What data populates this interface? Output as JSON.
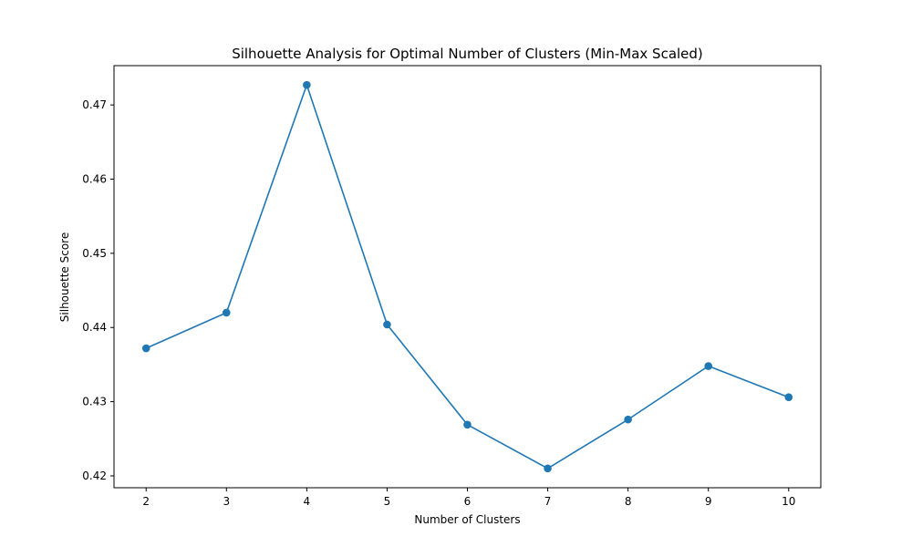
{
  "chart_data": {
    "type": "line",
    "title": "Silhouette Analysis for Optimal Number of Clusters (Min-Max Scaled)",
    "xlabel": "Number of Clusters",
    "ylabel": "Silhouette Score",
    "x": [
      2,
      3,
      4,
      5,
      6,
      7,
      8,
      9,
      10
    ],
    "series": [
      {
        "values": [
          0.4372,
          0.442,
          0.4727,
          0.4404,
          0.4269,
          0.421,
          0.4276,
          0.4348,
          0.4306
        ],
        "color": "#1f77b4",
        "marker": "circle"
      }
    ],
    "xlim": [
      1.6,
      10.4
    ],
    "ylim": [
      0.4184,
      0.4753
    ],
    "xticks": [
      2,
      3,
      4,
      5,
      6,
      7,
      8,
      9,
      10
    ],
    "yticks": [
      0.42,
      0.43,
      0.44,
      0.45,
      0.46,
      0.47
    ],
    "ytick_labels": [
      "0.42",
      "0.43",
      "0.44",
      "0.45",
      "0.46",
      "0.47"
    ],
    "grid": false,
    "legend": false
  }
}
